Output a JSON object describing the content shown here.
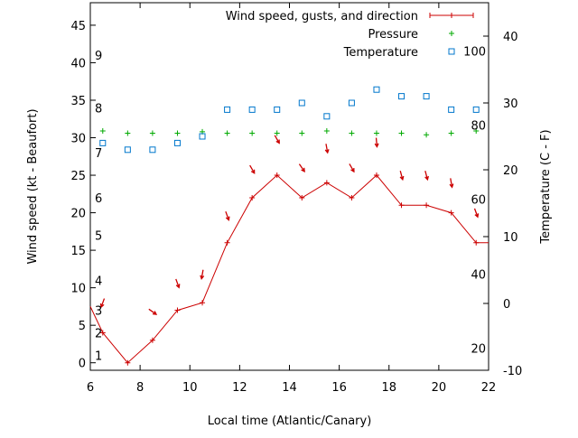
{
  "chart_data": {
    "type": "line",
    "xlabel": "Local time (Atlantic/Canary)",
    "ylabel": "Wind speed (kt - Beaufort)",
    "y2label": "Temperature (C - F)",
    "xlim": [
      6,
      22
    ],
    "ylim": [
      -1,
      48
    ],
    "y2lim": [
      -10,
      45
    ],
    "x_ticks": [
      6,
      8,
      10,
      12,
      14,
      16,
      18,
      20,
      22
    ],
    "y_ticks": [
      0,
      5,
      10,
      15,
      20,
      25,
      30,
      35,
      40,
      45
    ],
    "y2_ticks": [
      -10,
      0,
      10,
      20,
      30,
      40
    ],
    "beaufort_labels": [
      {
        "label": "1",
        "y": 1
      },
      {
        "label": "2",
        "y": 4
      },
      {
        "label": "3",
        "y": 7
      },
      {
        "label": "4",
        "y": 11
      },
      {
        "label": "5",
        "y": 17
      },
      {
        "label": "6",
        "y": 22
      },
      {
        "label": "7",
        "y": 28
      },
      {
        "label": "8",
        "y": 34
      },
      {
        "label": "9",
        "y": 41
      }
    ],
    "fahrenheit_labels": [
      {
        "label": "20",
        "y2": -6.7
      },
      {
        "label": "40",
        "y2": 4.4
      },
      {
        "label": "60",
        "y2": 15.6
      },
      {
        "label": "80",
        "y2": 26.7
      },
      {
        "label": "100",
        "y2": 37.8
      }
    ],
    "legend": {
      "position": "top-right",
      "entries": [
        "Wind speed, gusts, and direction",
        "Pressure",
        "Temperature"
      ]
    },
    "series": [
      {
        "name": "Wind speed, gusts, and direction",
        "color": "#cc0000",
        "x": [
          6,
          6.5,
          7.5,
          8.5,
          9.5,
          10.5,
          11.5,
          12.5,
          13.5,
          14.5,
          15.5,
          16.5,
          17.5,
          18.5,
          19.5,
          20.5,
          21.5,
          22
        ],
        "values": [
          7.5,
          4,
          0,
          3,
          7,
          8,
          16,
          22,
          25,
          22,
          24,
          22,
          25,
          21,
          21,
          20,
          16,
          16
        ]
      },
      {
        "name": "Pressure",
        "color": "#00aa00",
        "x": [
          6.5,
          7.5,
          8.5,
          9.5,
          10.5,
          11.5,
          12.5,
          13.5,
          14.5,
          15.5,
          16.5,
          17.5,
          18.5,
          19.5,
          20.5,
          21.5
        ],
        "values": [
          30.9,
          30.6,
          30.6,
          30.6,
          30.8,
          30.6,
          30.6,
          30.6,
          30.6,
          30.9,
          30.6,
          30.6,
          30.6,
          30.4,
          30.6,
          30.9
        ]
      },
      {
        "name": "Temperature",
        "color": "#0077cc",
        "x": [
          6.5,
          7.5,
          8.5,
          9.5,
          10.5,
          11.5,
          12.5,
          13.5,
          14.5,
          15.5,
          16.5,
          17.5,
          18.5,
          19.5,
          20.5,
          21.5
        ],
        "values": [
          24,
          23,
          23,
          24,
          25,
          29,
          29,
          29,
          30,
          28,
          30,
          32,
          31,
          31,
          29,
          29
        ]
      }
    ],
    "wind_direction_arrows": {
      "color": "#cc0000",
      "x": [
        6.5,
        8.5,
        9.5,
        10.5,
        11.5,
        12.5,
        13.5,
        14.5,
        15.5,
        16.5,
        17.5,
        18.5,
        19.5,
        20.5,
        21.5
      ],
      "y": [
        8.0,
        6.8,
        10.6,
        11.8,
        19.6,
        25.8,
        29.8,
        26.0,
        28.6,
        26.0,
        29.4,
        25.0,
        25.0,
        24.0,
        20.0
      ],
      "angle_deg": [
        110,
        35,
        70,
        100,
        70,
        60,
        60,
        55,
        80,
        60,
        85,
        75,
        75,
        80,
        70
      ]
    }
  }
}
